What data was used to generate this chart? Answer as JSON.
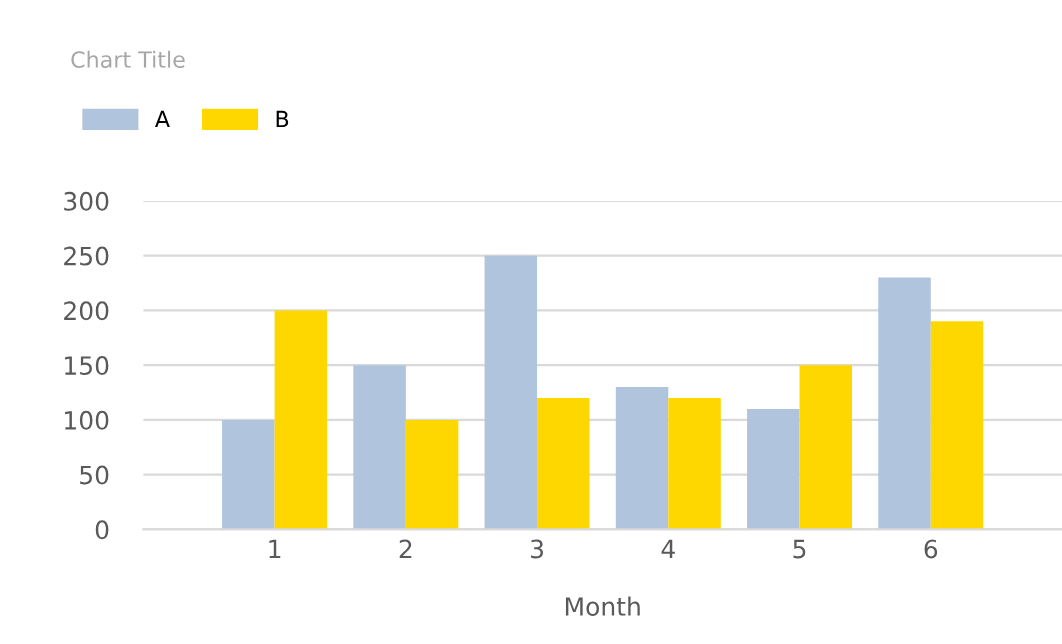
{
  "chart_data": {
    "type": "bar",
    "title": "Chart Title",
    "xlabel": "Month",
    "categories": [
      "1",
      "2",
      "3",
      "4",
      "5",
      "6"
    ],
    "series": [
      {
        "name": "A",
        "color": "#b0c4de",
        "values": [
          100,
          150,
          250,
          130,
          110,
          230
        ]
      },
      {
        "name": "B",
        "color": "#ffd700",
        "values": [
          200,
          100,
          120,
          120,
          150,
          190
        ]
      }
    ],
    "ylim": [
      0,
      300
    ],
    "yticks": [
      0,
      50,
      100,
      150,
      200,
      250,
      300
    ],
    "grid": "y",
    "legend": "top left"
  }
}
